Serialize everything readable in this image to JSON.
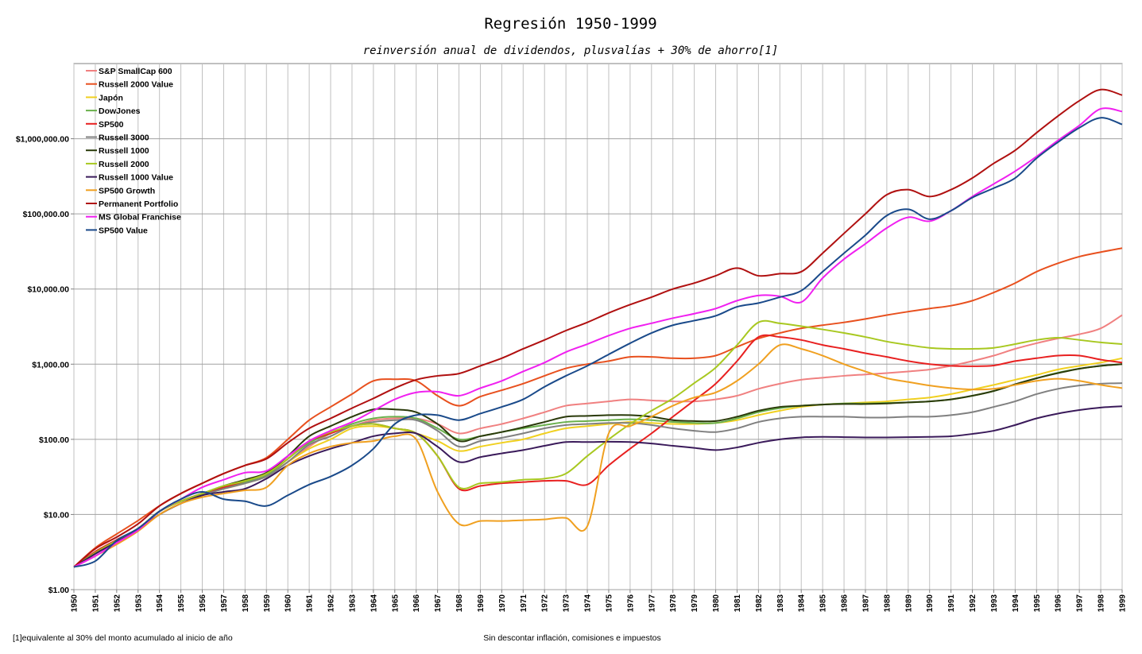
{
  "chart_data": {
    "type": "line",
    "title": "Regresión 1950-1999",
    "subtitle": "reinversión anual de dividendos, plusvalías + 30% de ahorro[1]",
    "footnote": "[1]equivalente al 30% del monto acumulado al inicio de año",
    "bottom_note": "Sin descontar inflación, comisiones e impuestos",
    "y_scale": "log",
    "ylim": [
      1,
      10000000
    ],
    "y_ticks": [
      1,
      10,
      100,
      1000,
      10000,
      100000,
      1000000
    ],
    "y_tick_labels": [
      "$1.00",
      "$10.00",
      "$100.00",
      "$1,000.00",
      "$10,000.00",
      "$100,000.00",
      "$1,000,000.00"
    ],
    "x": [
      1950,
      1951,
      1952,
      1953,
      1954,
      1955,
      1956,
      1957,
      1958,
      1959,
      1960,
      1961,
      1962,
      1963,
      1964,
      1965,
      1966,
      1967,
      1968,
      1969,
      1970,
      1971,
      1972,
      1973,
      1974,
      1975,
      1976,
      1977,
      1978,
      1979,
      1980,
      1981,
      1982,
      1983,
      1984,
      1985,
      1986,
      1987,
      1988,
      1989,
      1990,
      1991,
      1992,
      1993,
      1994,
      1995,
      1996,
      1997,
      1998,
      1999
    ],
    "grid": true,
    "legend_position": "top-left",
    "series": [
      {
        "name": "S&P SmallCap 600",
        "color": "#f08080",
        "values": [
          2,
          3.2,
          4.6,
          6.5,
          11,
          15,
          19,
          22,
          26,
          33,
          50,
          80,
          120,
          150,
          180,
          190,
          190,
          160,
          120,
          140,
          160,
          190,
          230,
          280,
          300,
          320,
          340,
          330,
          320,
          320,
          340,
          380,
          470,
          550,
          620,
          660,
          700,
          730,
          760,
          800,
          850,
          950,
          1100,
          1300,
          1600,
          1900,
          2200,
          2500,
          3000,
          4500
        ]
      },
      {
        "name": "Russell 2000 Value",
        "color": "#e8501e",
        "values": [
          2,
          3.6,
          5.5,
          8.3,
          13,
          19,
          26,
          35,
          45,
          57,
          100,
          180,
          270,
          400,
          600,
          630,
          600,
          380,
          280,
          370,
          450,
          550,
          700,
          880,
          1000,
          1100,
          1250,
          1250,
          1200,
          1200,
          1300,
          1700,
          2200,
          2600,
          3000,
          3300,
          3600,
          4000,
          4500,
          5000,
          5500,
          6000,
          7000,
          9000,
          12000,
          17000,
          22000,
          27000,
          31000,
          35000
        ]
      },
      {
        "name": "Japón",
        "color": "#f0d020",
        "values": [
          2,
          3,
          4.4,
          6.3,
          10,
          14,
          18,
          22,
          26,
          32,
          50,
          75,
          100,
          140,
          150,
          140,
          120,
          95,
          70,
          80,
          90,
          100,
          120,
          140,
          150,
          160,
          170,
          165,
          160,
          160,
          165,
          180,
          210,
          240,
          270,
          290,
          300,
          310,
          320,
          340,
          360,
          400,
          460,
          530,
          620,
          720,
          850,
          950,
          1050,
          1200
        ]
      },
      {
        "name": "DowJones",
        "color": "#6ab04c",
        "values": [
          2,
          3.1,
          4.5,
          6.5,
          11,
          15,
          19,
          23,
          27,
          33,
          55,
          90,
          120,
          160,
          190,
          200,
          190,
          140,
          100,
          110,
          125,
          140,
          155,
          170,
          175,
          180,
          185,
          180,
          170,
          165,
          165,
          190,
          230,
          260,
          280,
          290,
          300,
          300,
          305,
          310,
          320,
          340,
          380,
          440,
          540,
          650,
          770,
          870,
          950,
          1000
        ]
      },
      {
        "name": "SP500",
        "color": "#e82020",
        "values": [
          2,
          3.2,
          4.6,
          6.5,
          11,
          15,
          19,
          23,
          28,
          35,
          55,
          95,
          120,
          150,
          160,
          140,
          120,
          60,
          22,
          24,
          26,
          27,
          28,
          28,
          25,
          45,
          75,
          120,
          200,
          330,
          550,
          1100,
          2300,
          2300,
          2100,
          1800,
          1600,
          1400,
          1250,
          1100,
          1000,
          950,
          940,
          960,
          1100,
          1200,
          1300,
          1300,
          1150,
          1050
        ]
      },
      {
        "name": "Russell 3000",
        "color": "#808080",
        "values": [
          2,
          3,
          4.4,
          6.3,
          10,
          14,
          18,
          22,
          26,
          32,
          50,
          85,
          110,
          150,
          170,
          180,
          180,
          130,
          80,
          95,
          105,
          120,
          140,
          155,
          160,
          165,
          165,
          155,
          140,
          130,
          125,
          140,
          170,
          190,
          200,
          200,
          200,
          195,
          195,
          200,
          200,
          210,
          230,
          270,
          320,
          400,
          470,
          520,
          550,
          560
        ]
      },
      {
        "name": "Russell 1000",
        "color": "#2a3a0a",
        "values": [
          2,
          3.1,
          4.5,
          6.5,
          11,
          15,
          19,
          24,
          29,
          36,
          60,
          110,
          150,
          200,
          250,
          250,
          230,
          160,
          95,
          110,
          125,
          145,
          170,
          200,
          205,
          210,
          210,
          200,
          180,
          175,
          175,
          200,
          240,
          270,
          280,
          290,
          295,
          295,
          300,
          310,
          320,
          340,
          380,
          440,
          540,
          650,
          760,
          870,
          950,
          1000
        ]
      },
      {
        "name": "Russell 2000",
        "color": "#a8c820",
        "values": [
          2,
          3.1,
          4.5,
          6.5,
          11,
          15,
          19,
          24,
          28,
          35,
          55,
          95,
          125,
          150,
          160,
          140,
          120,
          60,
          23,
          26,
          27,
          29,
          30,
          35,
          60,
          100,
          160,
          240,
          350,
          560,
          900,
          1800,
          3600,
          3500,
          3200,
          2900,
          2600,
          2300,
          2000,
          1800,
          1650,
          1600,
          1600,
          1650,
          1850,
          2100,
          2250,
          2100,
          1950,
          1850
        ]
      },
      {
        "name": "Russell 1000 Value",
        "color": "#3a1a5a",
        "values": [
          2,
          3,
          4.3,
          6.2,
          10,
          14,
          18,
          20,
          22,
          30,
          45,
          60,
          75,
          90,
          110,
          120,
          120,
          80,
          50,
          58,
          65,
          72,
          82,
          92,
          92,
          93,
          92,
          88,
          82,
          77,
          72,
          78,
          90,
          100,
          106,
          108,
          107,
          106,
          106,
          107,
          108,
          110,
          118,
          130,
          155,
          190,
          220,
          245,
          265,
          275
        ]
      },
      {
        "name": "SP500 Growth",
        "color": "#f0a020",
        "values": [
          2,
          2.8,
          4,
          6,
          10,
          14,
          17,
          19,
          21,
          23,
          45,
          65,
          80,
          90,
          95,
          110,
          100,
          20,
          7.5,
          8.2,
          8.2,
          8.4,
          8.6,
          9,
          7,
          120,
          150,
          200,
          280,
          360,
          420,
          600,
          1000,
          1800,
          1600,
          1300,
          1000,
          800,
          650,
          580,
          520,
          480,
          460,
          470,
          530,
          600,
          640,
          600,
          530,
          480
        ]
      },
      {
        "name": "Permanent Portfolio",
        "color": "#b01010",
        "values": [
          2,
          3.5,
          5,
          7.5,
          13,
          19,
          26,
          35,
          45,
          55,
          90,
          140,
          190,
          260,
          350,
          480,
          620,
          700,
          750,
          950,
          1200,
          1600,
          2100,
          2800,
          3600,
          4800,
          6200,
          7800,
          10000,
          12000,
          15000,
          19000,
          15000,
          16000,
          17000,
          30000,
          55000,
          100000,
          180000,
          210000,
          170000,
          210000,
          300000,
          470000,
          700000,
          1200000,
          2000000,
          3200000,
          4500000,
          3800000
        ]
      },
      {
        "name": "MS Global Franchise",
        "color": "#f020f0",
        "values": [
          2,
          2.8,
          4.2,
          6.2,
          11,
          16,
          23,
          29,
          36,
          38,
          60,
          95,
          130,
          170,
          240,
          340,
          420,
          430,
          380,
          480,
          600,
          800,
          1050,
          1450,
          1850,
          2400,
          3000,
          3500,
          4100,
          4700,
          5500,
          7000,
          8200,
          8000,
          6700,
          14000,
          25000,
          40000,
          65000,
          90000,
          80000,
          110000,
          170000,
          250000,
          370000,
          580000,
          950000,
          1500000,
          2500000,
          2300000
        ]
      },
      {
        "name": "SP500 Value",
        "color": "#1a4a8a",
        "values": [
          2,
          2.4,
          4.5,
          6.5,
          11,
          16,
          20,
          16,
          15,
          13,
          18,
          25,
          32,
          45,
          75,
          160,
          210,
          210,
          180,
          220,
          270,
          340,
          500,
          700,
          950,
          1350,
          1900,
          2600,
          3300,
          3800,
          4400,
          5800,
          6500,
          7800,
          9500,
          17000,
          30000,
          52000,
          95000,
          115000,
          85000,
          110000,
          165000,
          220000,
          300000,
          550000,
          900000,
          1400000,
          1900000,
          1550000
        ]
      }
    ]
  }
}
